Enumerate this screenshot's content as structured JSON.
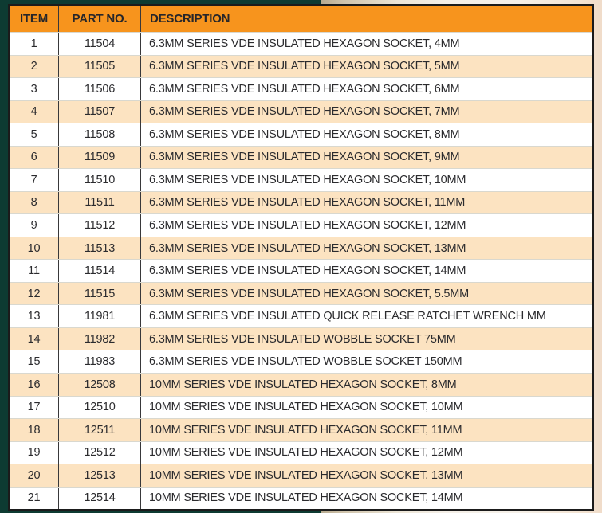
{
  "table": {
    "columns": [
      {
        "key": "item",
        "label": "ITEM"
      },
      {
        "key": "part",
        "label": "PART NO."
      },
      {
        "key": "description",
        "label": "DESCRIPTION"
      }
    ],
    "rows": [
      {
        "item": "1",
        "part": "11504",
        "description": "6.3MM SERIES VDE INSULATED HEXAGON SOCKET, 4MM"
      },
      {
        "item": "2",
        "part": "11505",
        "description": "6.3MM SERIES VDE INSULATED HEXAGON SOCKET, 5MM"
      },
      {
        "item": "3",
        "part": "11506",
        "description": "6.3MM SERIES VDE INSULATED HEXAGON SOCKET, 6MM"
      },
      {
        "item": "4",
        "part": "11507",
        "description": "6.3MM SERIES VDE INSULATED HEXAGON SOCKET, 7MM"
      },
      {
        "item": "5",
        "part": "11508",
        "description": "6.3MM SERIES VDE INSULATED HEXAGON SOCKET, 8MM"
      },
      {
        "item": "6",
        "part": "11509",
        "description": "6.3MM SERIES VDE INSULATED HEXAGON SOCKET, 9MM"
      },
      {
        "item": "7",
        "part": "11510",
        "description": "6.3MM SERIES VDE INSULATED HEXAGON SOCKET, 10MM"
      },
      {
        "item": "8",
        "part": "11511",
        "description": "6.3MM SERIES VDE INSULATED HEXAGON SOCKET, 11MM"
      },
      {
        "item": "9",
        "part": "11512",
        "description": "6.3MM SERIES VDE INSULATED HEXAGON SOCKET, 12MM"
      },
      {
        "item": "10",
        "part": "11513",
        "description": "6.3MM SERIES VDE INSULATED HEXAGON SOCKET, 13MM"
      },
      {
        "item": "11",
        "part": "11514",
        "description": "6.3MM SERIES VDE INSULATED HEXAGON SOCKET, 14MM"
      },
      {
        "item": "12",
        "part": "11515",
        "description": "6.3MM SERIES VDE INSULATED HEXAGON SOCKET, 5.5MM"
      },
      {
        "item": "13",
        "part": "11981",
        "description": "6.3MM SERIES VDE INSULATED QUICK RELEASE RATCHET WRENCH MM"
      },
      {
        "item": "14",
        "part": "11982",
        "description": "6.3MM SERIES VDE INSULATED WOBBLE SOCKET 75MM"
      },
      {
        "item": "15",
        "part": "11983",
        "description": "6.3MM SERIES VDE INSULATED WOBBLE SOCKET 150MM"
      },
      {
        "item": "16",
        "part": "12508",
        "description": "10MM SERIES VDE INSULATED HEXAGON SOCKET, 8MM"
      },
      {
        "item": "17",
        "part": "12510",
        "description": "10MM SERIES VDE INSULATED HEXAGON SOCKET, 10MM"
      },
      {
        "item": "18",
        "part": "12511",
        "description": "10MM SERIES VDE INSULATED HEXAGON SOCKET, 11MM"
      },
      {
        "item": "19",
        "part": "12512",
        "description": "10MM SERIES VDE INSULATED HEXAGON SOCKET, 12MM"
      },
      {
        "item": "20",
        "part": "12513",
        "description": "10MM SERIES VDE INSULATED HEXAGON SOCKET, 13MM"
      },
      {
        "item": "21",
        "part": "12514",
        "description": "10MM SERIES VDE INSULATED HEXAGON SOCKET, 14MM"
      }
    ]
  },
  "colors": {
    "header_bg": "#F7941D",
    "header_text": "#26262A",
    "row_bg": "#FFFFFF",
    "row_alt_bg": "#FCE3C1",
    "row_text": "#2B2B2E",
    "table_border": "#1B1B1B",
    "background_green": "#0D3B32",
    "background_beige": "#F4EFE7"
  }
}
